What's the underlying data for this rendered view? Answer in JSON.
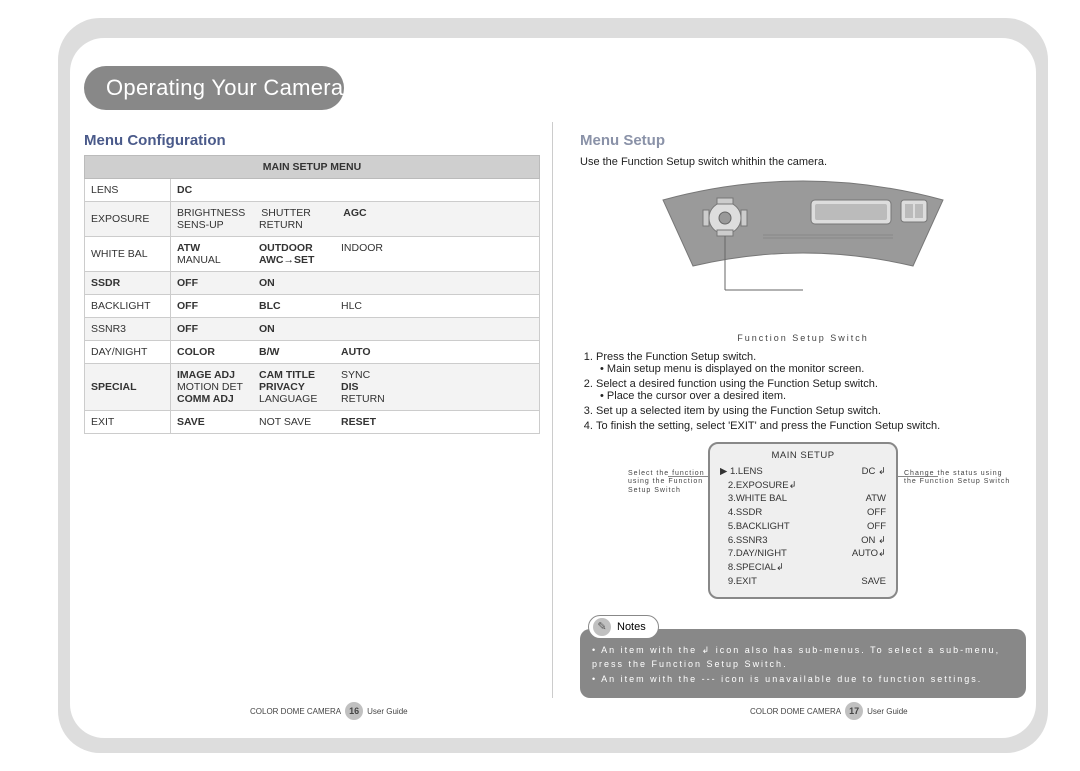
{
  "header": {
    "title": "Operating Your Camera"
  },
  "left": {
    "section_title": "Menu Configuration",
    "table_header": "MAIN SETUP MENU",
    "rows": [
      {
        "label": "LENS",
        "label_bold": false,
        "lines": [
          [
            "DC"
          ]
        ],
        "bold_opts": [
          "DC"
        ]
      },
      {
        "label": "EXPOSURE",
        "label_bold": false,
        "lines": [
          [
            "BRIGHTNESS",
            "SHUTTER",
            "AGC"
          ],
          [
            "SENS-UP",
            "RETURN"
          ]
        ],
        "bold_opts": [
          "AGC"
        ]
      },
      {
        "label": "WHITE BAL",
        "label_bold": false,
        "lines": [
          [
            "ATW",
            "OUTDOOR",
            "INDOOR"
          ],
          [
            "MANUAL",
            "AWC→SET"
          ]
        ],
        "bold_opts": [
          "ATW",
          "OUTDOOR",
          "AWC→SET"
        ]
      },
      {
        "label": "SSDR",
        "label_bold": true,
        "lines": [
          [
            "OFF",
            "ON"
          ]
        ],
        "bold_opts": [
          "OFF",
          "ON"
        ]
      },
      {
        "label": "BACKLIGHT",
        "label_bold": false,
        "lines": [
          [
            "OFF",
            "BLC",
            "HLC"
          ]
        ],
        "bold_opts": [
          "OFF",
          "BLC"
        ]
      },
      {
        "label": "SSNR3",
        "label_bold": false,
        "lines": [
          [
            "OFF",
            "ON"
          ]
        ],
        "bold_opts": [
          "OFF",
          "ON"
        ]
      },
      {
        "label": "DAY/NIGHT",
        "label_bold": false,
        "lines": [
          [
            "COLOR",
            "B/W",
            "AUTO"
          ]
        ],
        "bold_opts": [
          "COLOR",
          "B/W",
          "AUTO"
        ]
      },
      {
        "label": "SPECIAL",
        "label_bold": true,
        "lines": [
          [
            "IMAGE ADJ",
            "CAM TITLE",
            "SYNC"
          ],
          [
            "MOTION DET",
            "PRIVACY",
            "DIS"
          ],
          [
            "COMM ADJ",
            "LANGUAGE",
            "RETURN"
          ]
        ],
        "bold_opts": [
          "IMAGE ADJ",
          "CAM TITLE",
          "PRIVACY",
          "DIS",
          "COMM ADJ"
        ]
      },
      {
        "label": "EXIT",
        "label_bold": false,
        "lines": [
          [
            "SAVE",
            "NOT SAVE",
            "RESET"
          ]
        ],
        "bold_opts": [
          "SAVE",
          "RESET"
        ]
      }
    ]
  },
  "right": {
    "section_title": "Menu Setup",
    "intro": "Use the Function Setup switch whithin the camera.",
    "func_caption": "Function Setup Switch",
    "steps": [
      {
        "text": "Press the Function Setup switch.",
        "sub": "• Main setup menu is displayed on the monitor screen."
      },
      {
        "text": "Select a desired function using the Function Setup switch.",
        "sub": "• Place the cursor over a desired item."
      },
      {
        "text": "Set up a selected item by using the Function Setup switch.",
        "sub": ""
      },
      {
        "text": "To finish the setting, select 'EXIT' and press the Function Setup switch.",
        "sub": ""
      }
    ],
    "osd": {
      "title": "MAIN SETUP",
      "items": [
        {
          "l": "▶ 1.LENS",
          "r": "DC ↲"
        },
        {
          "l": "   2.EXPOSURE↲",
          "r": ""
        },
        {
          "l": "   3.WHITE BAL",
          "r": "ATW"
        },
        {
          "l": "   4.SSDR",
          "r": "OFF"
        },
        {
          "l": "   5.BACKLIGHT",
          "r": "OFF"
        },
        {
          "l": "   6.SSNR3",
          "r": "ON ↲"
        },
        {
          "l": "   7.DAY/NIGHT",
          "r": "AUTO↲"
        },
        {
          "l": "   8.SPECIAL↲",
          "r": ""
        },
        {
          "l": "   9.EXIT",
          "r": "SAVE"
        }
      ],
      "callout_left": "Select the function using the Function Setup Switch",
      "callout_right": "Change the status using the Function Setup Switch"
    },
    "notes_label": "Notes",
    "notes": [
      "• An item with the ↲ icon also has sub-menus. To select a sub-menu, press the Function Setup Switch.",
      "• An item with the --- icon is unavailable due to function settings."
    ]
  },
  "footer": {
    "product": "COLOR DOME CAMERA",
    "guide": "User Guide",
    "page_left": "16",
    "page_right": "17"
  },
  "colors": {
    "pill": "#888888",
    "accent": "#4a5a8a"
  }
}
